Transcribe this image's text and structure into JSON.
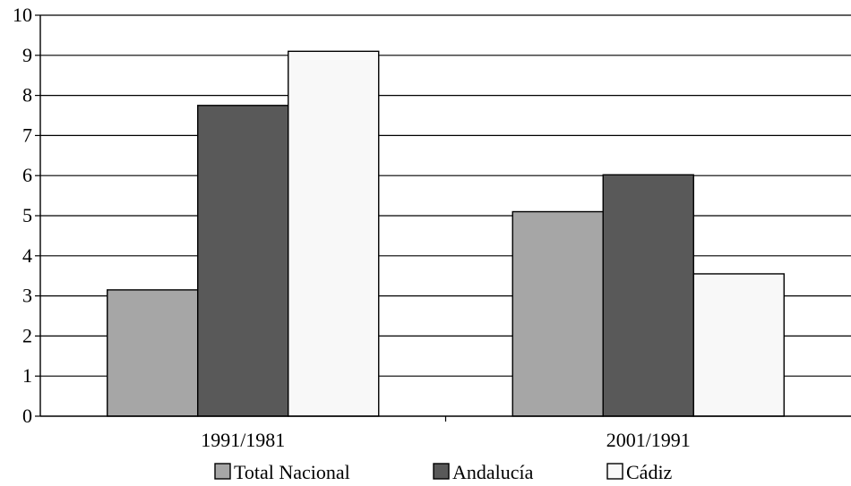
{
  "chart_data": {
    "type": "bar",
    "categories": [
      "1991/1981",
      "2001/1991"
    ],
    "series": [
      {
        "name": "Total Nacional",
        "values": [
          3.15,
          5.1
        ],
        "color": "#a6a6a6"
      },
      {
        "name": "Andalucía",
        "values": [
          7.75,
          6.02
        ],
        "color": "#595959"
      },
      {
        "name": "Cádiz",
        "values": [
          9.1,
          3.55
        ],
        "color": "#f8f8f8"
      }
    ],
    "ylim": [
      0,
      10
    ],
    "yticks": [
      "0",
      "1",
      "2",
      "3",
      "4",
      "5",
      "6",
      "7",
      "8",
      "9",
      "10"
    ],
    "grid": true,
    "legend_position": "bottom"
  }
}
